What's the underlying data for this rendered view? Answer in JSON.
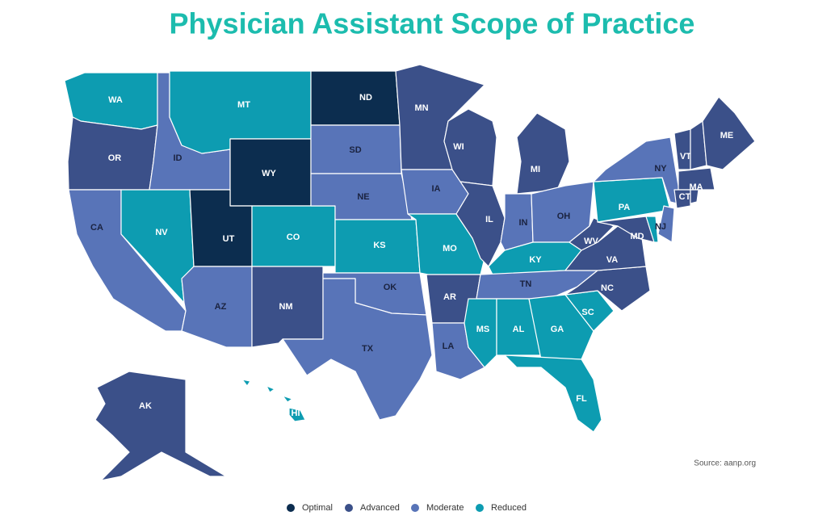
{
  "title": "Physician Assistant Scope of Practice",
  "legend": [
    {
      "label": "Optimal",
      "color": "#0c2d4f"
    },
    {
      "label": "Advanced",
      "color": "#3b5089"
    },
    {
      "label": "Moderate",
      "color": "#5874b8"
    },
    {
      "label": "Reduced",
      "color": "#0d9cb1"
    }
  ],
  "states": [
    {
      "code": "WA",
      "level": "Reduced"
    },
    {
      "code": "OR",
      "level": "Advanced"
    },
    {
      "code": "CA",
      "level": "Moderate"
    },
    {
      "code": "ID",
      "level": "Moderate"
    },
    {
      "code": "NV",
      "level": "Reduced"
    },
    {
      "code": "MT",
      "level": "Reduced"
    },
    {
      "code": "WY",
      "level": "Optimal"
    },
    {
      "code": "UT",
      "level": "Optimal"
    },
    {
      "code": "CO",
      "level": "Reduced"
    },
    {
      "code": "AZ",
      "level": "Moderate"
    },
    {
      "code": "NM",
      "level": "Advanced"
    },
    {
      "code": "ND",
      "level": "Optimal"
    },
    {
      "code": "SD",
      "level": "Moderate"
    },
    {
      "code": "NE",
      "level": "Moderate"
    },
    {
      "code": "KS",
      "level": "Reduced"
    },
    {
      "code": "OK",
      "level": "Moderate"
    },
    {
      "code": "TX",
      "level": "Moderate"
    },
    {
      "code": "MN",
      "level": "Advanced"
    },
    {
      "code": "IA",
      "level": "Moderate"
    },
    {
      "code": "MO",
      "level": "Reduced"
    },
    {
      "code": "AR",
      "level": "Advanced"
    },
    {
      "code": "LA",
      "level": "Moderate"
    },
    {
      "code": "WI",
      "level": "Advanced"
    },
    {
      "code": "IL",
      "level": "Advanced"
    },
    {
      "code": "MI",
      "level": "Advanced"
    },
    {
      "code": "IN",
      "level": "Moderate"
    },
    {
      "code": "OH",
      "level": "Moderate"
    },
    {
      "code": "KY",
      "level": "Reduced"
    },
    {
      "code": "TN",
      "level": "Moderate"
    },
    {
      "code": "MS",
      "level": "Reduced"
    },
    {
      "code": "AL",
      "level": "Reduced"
    },
    {
      "code": "GA",
      "level": "Reduced"
    },
    {
      "code": "FL",
      "level": "Reduced"
    },
    {
      "code": "SC",
      "level": "Reduced"
    },
    {
      "code": "NC",
      "level": "Advanced"
    },
    {
      "code": "VA",
      "level": "Advanced"
    },
    {
      "code": "WV",
      "level": "Advanced"
    },
    {
      "code": "PA",
      "level": "Reduced"
    },
    {
      "code": "NY",
      "level": "Moderate"
    },
    {
      "code": "MD",
      "level": "Advanced"
    },
    {
      "code": null,
      "level": "Reduced"
    },
    {
      "code": "NJ",
      "level": "Moderate"
    },
    {
      "code": "VT",
      "level": "Advanced"
    },
    {
      "code": null,
      "level": "Advanced"
    },
    {
      "code": "ME",
      "level": "Advanced"
    },
    {
      "code": "MA",
      "level": "Advanced"
    },
    {
      "code": "CT",
      "level": "Advanced"
    },
    {
      "code": null,
      "level": "Advanced"
    },
    {
      "code": "AK",
      "level": "Advanced"
    },
    {
      "code": "HI",
      "level": "Reduced"
    }
  ],
  "source": "Source: aanp.org"
}
